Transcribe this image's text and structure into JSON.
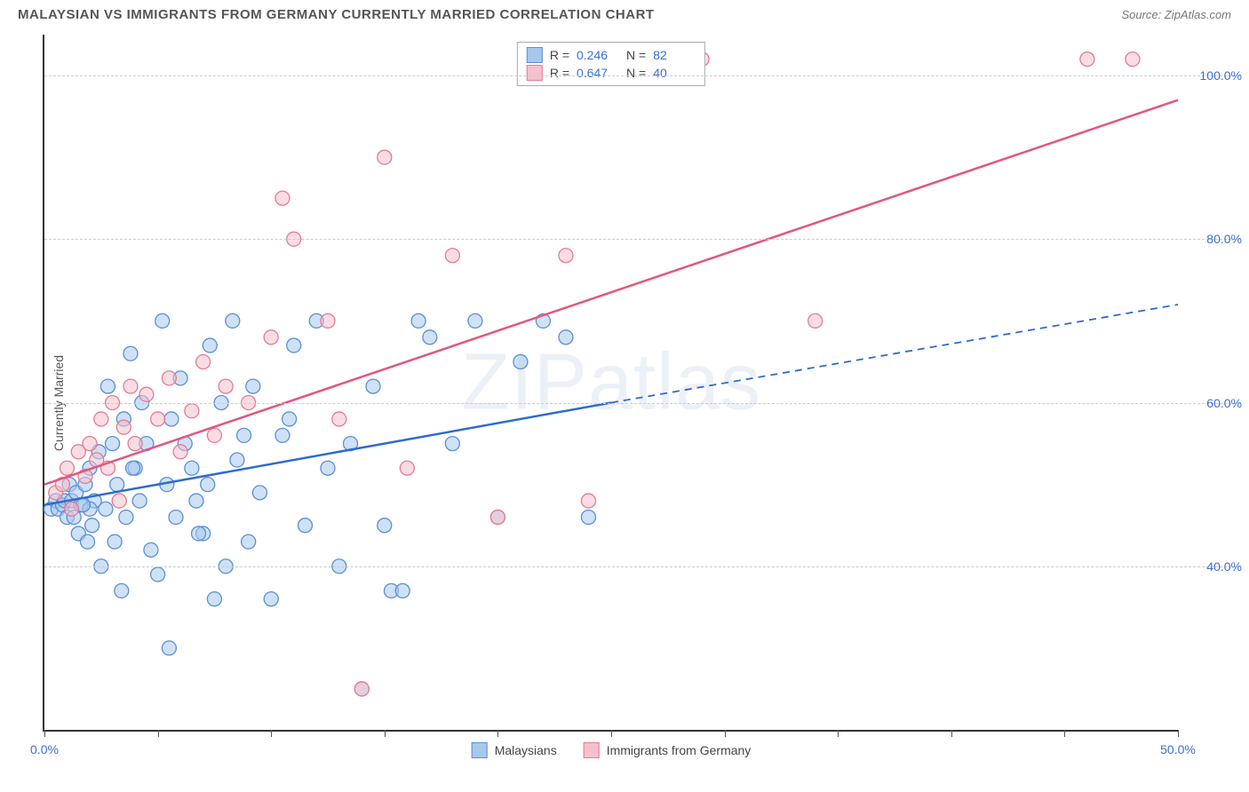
{
  "title": "MALAYSIAN VS IMMIGRANTS FROM GERMANY CURRENTLY MARRIED CORRELATION CHART",
  "source": "Source: ZipAtlas.com",
  "watermark": "ZIPatlas",
  "y_axis_label": "Currently Married",
  "chart": {
    "type": "scatter",
    "xlim": [
      0,
      50
    ],
    "ylim": [
      20,
      105
    ],
    "x_ticks": [
      0,
      5,
      10,
      15,
      20,
      25,
      30,
      35,
      40,
      45,
      50
    ],
    "x_tick_labels": {
      "0": "0.0%",
      "50": "50.0%"
    },
    "y_ticks": [
      40,
      60,
      80,
      100
    ],
    "y_tick_labels": {
      "40": "40.0%",
      "60": "60.0%",
      "80": "80.0%",
      "100": "100.0%"
    },
    "grid_color": "#cccccc",
    "axis_color": "#333333",
    "background_color": "#ffffff",
    "marker_radius": 8,
    "marker_opacity": 0.55,
    "series": [
      {
        "name": "Malaysians",
        "fill_color": "#a8c8ec",
        "stroke_color": "#5a8fd6",
        "line_color": "#2e6bd0",
        "R": "0.246",
        "N": "82",
        "regression": {
          "x1": 0,
          "y1": 47.5,
          "x2_solid": 25,
          "y2_solid": 60,
          "x2": 50,
          "y2": 72
        },
        "points": [
          [
            0.3,
            47
          ],
          [
            0.5,
            48
          ],
          [
            0.6,
            47
          ],
          [
            0.8,
            47.5
          ],
          [
            0.9,
            48
          ],
          [
            1.0,
            46
          ],
          [
            1.1,
            50
          ],
          [
            1.2,
            48
          ],
          [
            1.3,
            46
          ],
          [
            1.4,
            49
          ],
          [
            1.5,
            44
          ],
          [
            1.6,
            47.5
          ],
          [
            1.8,
            50
          ],
          [
            1.9,
            43
          ],
          [
            2.0,
            52
          ],
          [
            2.1,
            45
          ],
          [
            2.2,
            48
          ],
          [
            2.4,
            54
          ],
          [
            2.5,
            40
          ],
          [
            2.7,
            47
          ],
          [
            2.8,
            62
          ],
          [
            3.0,
            55
          ],
          [
            3.1,
            43
          ],
          [
            3.2,
            50
          ],
          [
            3.4,
            37
          ],
          [
            3.5,
            58
          ],
          [
            3.6,
            46
          ],
          [
            3.8,
            66
          ],
          [
            4.0,
            52
          ],
          [
            4.2,
            48
          ],
          [
            4.3,
            60
          ],
          [
            4.5,
            55
          ],
          [
            4.7,
            42
          ],
          [
            5.0,
            39
          ],
          [
            5.2,
            70
          ],
          [
            5.4,
            50
          ],
          [
            5.6,
            58
          ],
          [
            5.8,
            46
          ],
          [
            6.0,
            63
          ],
          [
            6.2,
            55
          ],
          [
            6.5,
            52
          ],
          [
            6.7,
            48
          ],
          [
            7.0,
            44
          ],
          [
            7.3,
            67
          ],
          [
            7.5,
            36
          ],
          [
            7.8,
            60
          ],
          [
            8.0,
            40
          ],
          [
            8.3,
            70
          ],
          [
            8.5,
            53
          ],
          [
            9.0,
            43
          ],
          [
            9.2,
            62
          ],
          [
            9.5,
            49
          ],
          [
            10.0,
            36
          ],
          [
            10.5,
            56
          ],
          [
            11.0,
            67
          ],
          [
            11.5,
            45
          ],
          [
            12.0,
            70
          ],
          [
            12.5,
            52
          ],
          [
            13.0,
            40
          ],
          [
            13.5,
            55
          ],
          [
            14.0,
            25
          ],
          [
            14.5,
            62
          ],
          [
            15.0,
            45
          ],
          [
            15.3,
            37
          ],
          [
            15.8,
            37
          ],
          [
            16.5,
            70
          ],
          [
            17.0,
            68
          ],
          [
            18.0,
            55
          ],
          [
            19.0,
            70
          ],
          [
            20.0,
            46
          ],
          [
            21.0,
            65
          ],
          [
            22.0,
            70
          ],
          [
            23.0,
            68
          ],
          [
            24.0,
            46
          ],
          [
            5.5,
            30
          ],
          [
            8.8,
            56
          ],
          [
            2.0,
            47
          ],
          [
            1.7,
            47.5
          ],
          [
            3.9,
            52
          ],
          [
            6.8,
            44
          ],
          [
            10.8,
            58
          ],
          [
            7.2,
            50
          ]
        ]
      },
      {
        "name": "Immigrants from Germany",
        "fill_color": "#f5c1cc",
        "stroke_color": "#e67a95",
        "line_color": "#e2577e",
        "R": "0.647",
        "N": "40",
        "regression": {
          "x1": 0,
          "y1": 50,
          "x2_solid": 50,
          "y2_solid": 97,
          "x2": 50,
          "y2": 97
        },
        "points": [
          [
            0.5,
            49
          ],
          [
            0.8,
            50
          ],
          [
            1.0,
            52
          ],
          [
            1.2,
            47
          ],
          [
            1.5,
            54
          ],
          [
            1.8,
            51
          ],
          [
            2.0,
            55
          ],
          [
            2.3,
            53
          ],
          [
            2.5,
            58
          ],
          [
            2.8,
            52
          ],
          [
            3.0,
            60
          ],
          [
            3.3,
            48
          ],
          [
            3.5,
            57
          ],
          [
            3.8,
            62
          ],
          [
            4.0,
            55
          ],
          [
            4.5,
            61
          ],
          [
            5.0,
            58
          ],
          [
            5.5,
            63
          ],
          [
            6.0,
            54
          ],
          [
            6.5,
            59
          ],
          [
            7.0,
            65
          ],
          [
            7.5,
            56
          ],
          [
            8.0,
            62
          ],
          [
            9.0,
            60
          ],
          [
            10.0,
            68
          ],
          [
            10.5,
            85
          ],
          [
            11.0,
            80
          ],
          [
            12.5,
            70
          ],
          [
            13.0,
            58
          ],
          [
            14.0,
            25
          ],
          [
            15.0,
            90
          ],
          [
            16.0,
            52
          ],
          [
            18.0,
            78
          ],
          [
            20.0,
            46
          ],
          [
            23.0,
            78
          ],
          [
            24.0,
            48
          ],
          [
            29.0,
            102
          ],
          [
            34.0,
            70
          ],
          [
            46.0,
            102
          ],
          [
            48.0,
            102
          ]
        ]
      }
    ]
  },
  "bottom_legend": [
    {
      "label": "Malaysians",
      "fill": "#a8c8ec",
      "stroke": "#5a8fd6"
    },
    {
      "label": "Immigrants from Germany",
      "fill": "#f5c1cc",
      "stroke": "#e67a95"
    }
  ]
}
